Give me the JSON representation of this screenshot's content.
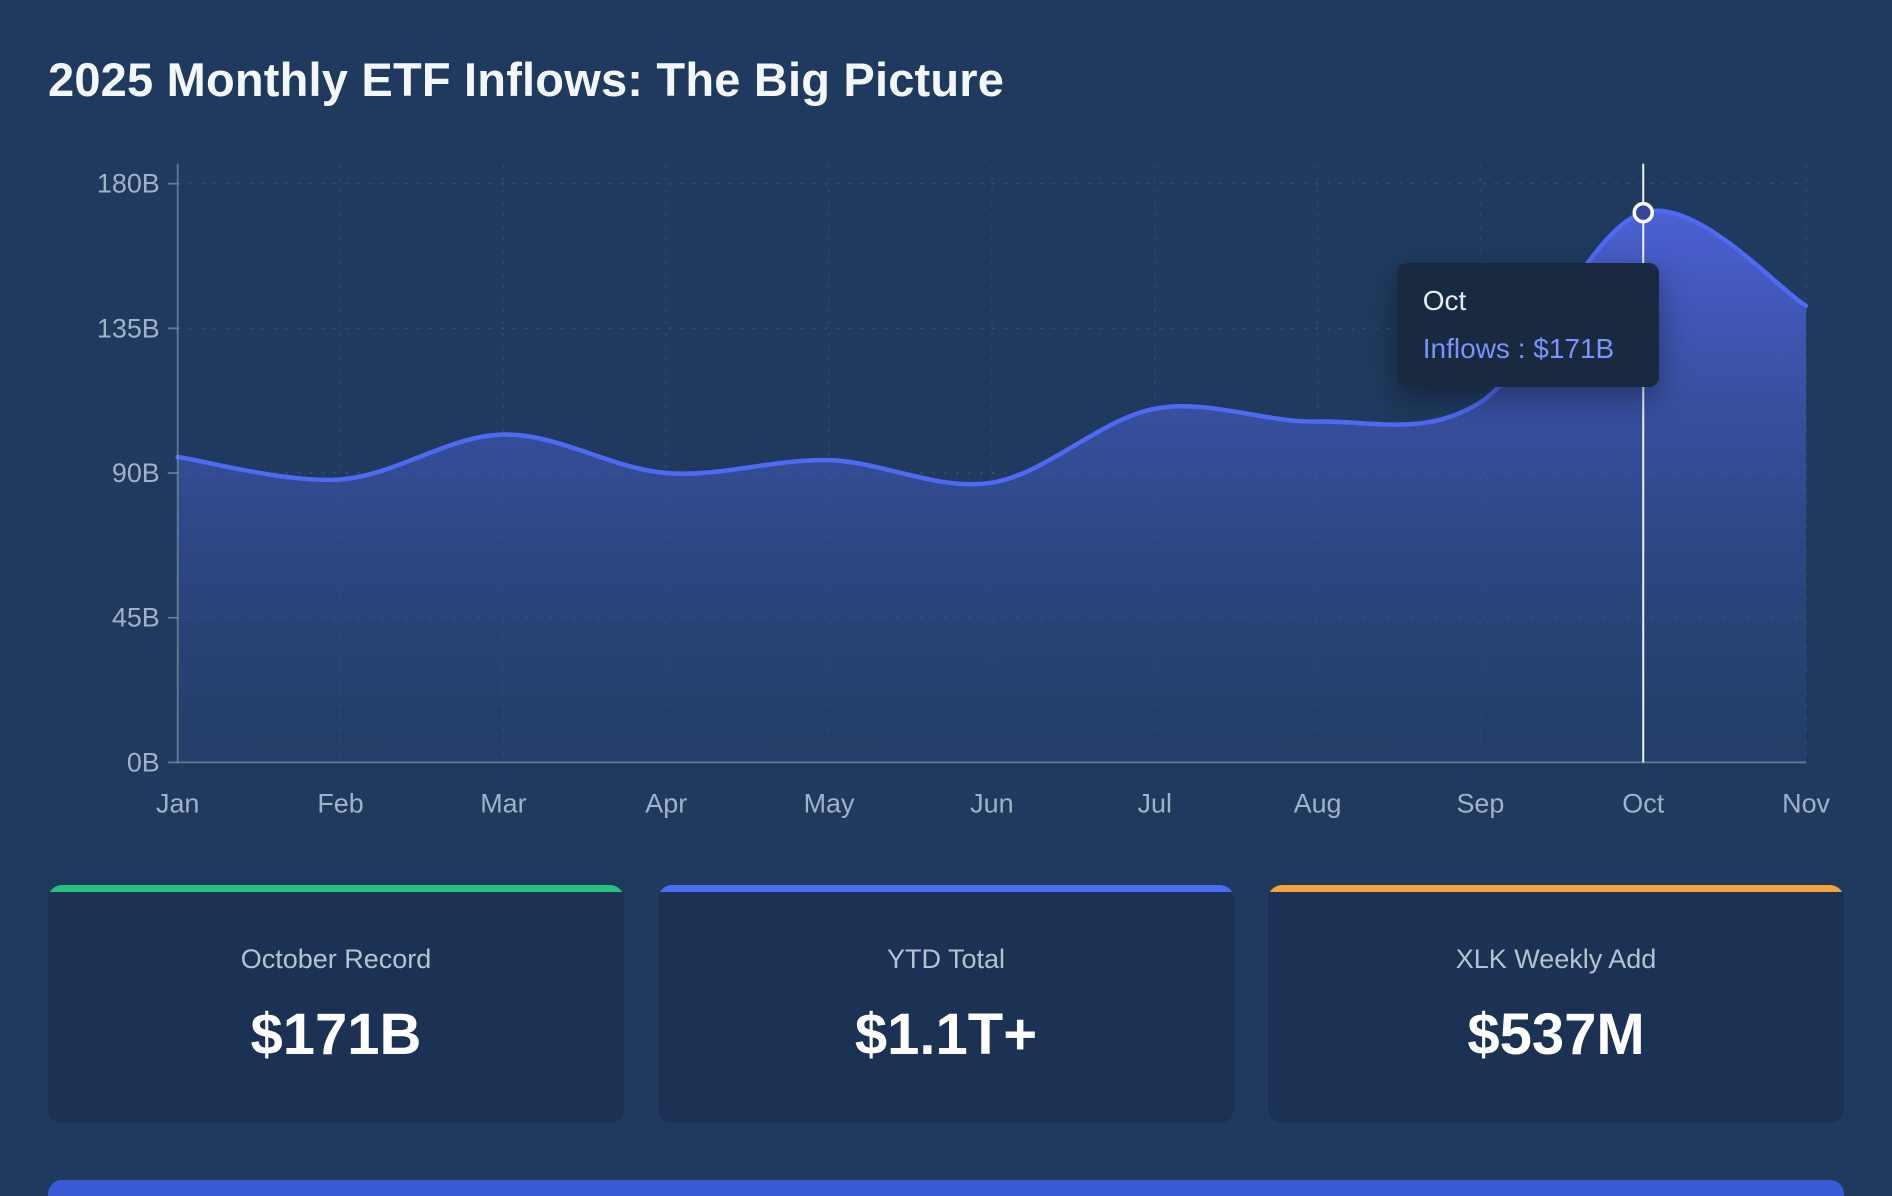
{
  "title": "2025 Monthly ETF Inflows: The Big Picture",
  "chart_data": {
    "type": "area",
    "title": "2025 Monthly ETF Inflows: The Big Picture",
    "x": [
      "Jan",
      "Feb",
      "Mar",
      "Apr",
      "May",
      "Jun",
      "Jul",
      "Aug",
      "Sep",
      "Oct",
      "Nov"
    ],
    "series": [
      {
        "name": "Inflows",
        "values": [
          95,
          88,
          102,
          90,
          94,
          87,
          110,
          106,
          112,
          171,
          142
        ]
      }
    ],
    "unit": "B (USD)",
    "ylim": [
      0,
      180
    ],
    "yticks": [
      0,
      45,
      90,
      135,
      180
    ],
    "ytick_labels": [
      "0B",
      "45B",
      "90B",
      "135B",
      "180B"
    ],
    "grid": true,
    "legend_position": "none",
    "highlight_index": 9,
    "line_color": "#5069f2",
    "area_top_color": "#4e62da",
    "area_bottom_color": "#2a4478",
    "crosshair_color": "#eef2f7"
  },
  "tooltip": {
    "month": "Oct",
    "series": "Inflows",
    "value": "$171B",
    "text": "Inflows : $171B"
  },
  "cards": [
    {
      "label": "October Record",
      "value": "$171B",
      "accent": "#27c281"
    },
    {
      "label": "YTD Total",
      "value": "$1.1T+",
      "accent": "#4a6cf7"
    },
    {
      "label": "XLK Weekly Add",
      "value": "$537M",
      "accent": "#f2a33c"
    }
  ],
  "colors": {
    "background": "#1f3a5e",
    "card_background": "#1c3254",
    "tooltip_background": "#182940",
    "axis_text": "#9fb2c8"
  }
}
